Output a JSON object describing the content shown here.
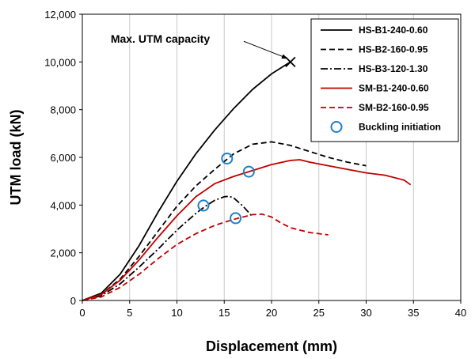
{
  "chart_data": {
    "type": "line",
    "xlabel": "Displacement (mm)",
    "ylabel": "UTM load (kN)",
    "xlim": [
      0,
      40
    ],
    "ylim": [
      0,
      12000
    ],
    "xticks": [
      0,
      5,
      10,
      15,
      20,
      25,
      30,
      35,
      40
    ],
    "yticks": [
      0,
      2000,
      4000,
      6000,
      8000,
      10000,
      12000
    ],
    "xtick_labels": [
      "0",
      "5",
      "10",
      "15",
      "20",
      "25",
      "30",
      "35",
      "40"
    ],
    "ytick_labels": [
      "0",
      "2,000",
      "4,000",
      "6,000",
      "8,000",
      "10,000",
      "12,000"
    ],
    "grid": "vertical",
    "legend_position": "top-right",
    "colors": {
      "black": "#000000",
      "red": "#c00000",
      "marker": "#1f7fc8",
      "grid": "#c8c8c8"
    },
    "series": [
      {
        "name": "HS-B1-240-0.60",
        "color": "#000000",
        "dash": "solid",
        "x": [
          0,
          2,
          4,
          6,
          8,
          10,
          12,
          14,
          16,
          18,
          20,
          22
        ],
        "y": [
          0,
          300,
          1100,
          2300,
          3700,
          5000,
          6150,
          7150,
          8050,
          8850,
          9500,
          10000
        ]
      },
      {
        "name": "HS-B2-160-0.95",
        "color": "#000000",
        "dash": "dashed",
        "x": [
          0,
          2,
          4,
          6,
          8,
          10,
          12,
          14,
          16,
          18,
          20,
          22,
          24,
          26,
          28,
          30
        ],
        "y": [
          0,
          250,
          900,
          1850,
          2900,
          3950,
          4800,
          5500,
          6150,
          6550,
          6650,
          6500,
          6250,
          6000,
          5800,
          5650
        ]
      },
      {
        "name": "HS-B3-120-1.30",
        "color": "#000000",
        "dash": "dashdot",
        "x": [
          0,
          2,
          4,
          6,
          8,
          10,
          12,
          13,
          14,
          15,
          15.5,
          16,
          17,
          18
        ],
        "y": [
          0,
          200,
          700,
          1400,
          2150,
          2950,
          3650,
          3950,
          4200,
          4350,
          4370,
          4300,
          3950,
          3500
        ]
      },
      {
        "name": "SM-B1-240-0.60",
        "color": "#c00000",
        "dash": "solid",
        "x": [
          0,
          2,
          4,
          6,
          8,
          10,
          12,
          14,
          16,
          18,
          20,
          22,
          23,
          24,
          26,
          28,
          30,
          32,
          34,
          34.7
        ],
        "y": [
          0,
          250,
          850,
          1700,
          2650,
          3550,
          4350,
          4900,
          5200,
          5450,
          5700,
          5870,
          5900,
          5800,
          5650,
          5500,
          5350,
          5250,
          5050,
          4850
        ]
      },
      {
        "name": "SM-B2-160-0.95",
        "color": "#c00000",
        "dash": "dashed",
        "x": [
          0,
          2,
          4,
          6,
          8,
          10,
          12,
          14,
          16,
          18,
          19,
          20,
          21,
          22,
          24,
          26
        ],
        "y": [
          0,
          150,
          550,
          1100,
          1750,
          2350,
          2800,
          3150,
          3400,
          3600,
          3620,
          3500,
          3250,
          3050,
          2850,
          2750
        ]
      }
    ],
    "markers": {
      "name": "Buckling initiation",
      "shape": "circle",
      "points": [
        {
          "x": 15.3,
          "y": 5950
        },
        {
          "x": 17.6,
          "y": 5400
        },
        {
          "x": 12.8,
          "y": 3980
        },
        {
          "x": 16.2,
          "y": 3450
        }
      ]
    },
    "annotation": {
      "text": "Max. UTM capacity",
      "text_x": 3.0,
      "text_y": 10800,
      "arrow_end_x": 22.0,
      "arrow_end_y": 10050,
      "point_x": 22.0,
      "point_y": 10000,
      "point_shape": "x"
    }
  }
}
